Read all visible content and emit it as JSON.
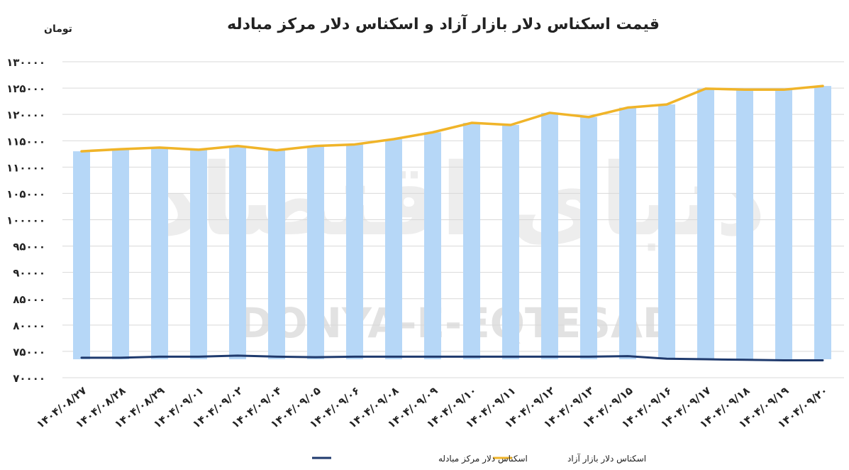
{
  "chart_data": {
    "type": "bar-line",
    "title": "قیمت اسکناس دلار بازار آزاد و اسکناس دلار مرکز مبادله",
    "unit_label": "تومان",
    "watermark": {
      "latin": "DONYA-E-EQTESAD",
      "persian": "دنیای اقتصاد"
    },
    "categories": [
      "۱۴۰۴/۰۸/۲۷",
      "۱۴۰۴/۰۸/۲۸",
      "۱۴۰۴/۰۸/۲۹",
      "۱۴۰۴/۰۹/۰۱",
      "۱۴۰۴/۰۹/۰۲",
      "۱۴۰۴/۰۹/۰۴",
      "۱۴۰۴/۰۹/۰۵",
      "۱۴۰۴/۰۹/۰۶",
      "۱۴۰۴/۰۹/۰۸",
      "۱۴۰۴/۰۹/۰۹",
      "۱۴۰۴/۰۹/۱۰",
      "۱۴۰۴/۰۹/۱۱",
      "۱۴۰۴/۰۹/۱۲",
      "۱۴۰۴/۰۹/۱۳",
      "۱۴۰۴/۰۹/۱۵",
      "۱۴۰۴/۰۹/۱۶",
      "۱۴۰۴/۰۹/۱۷",
      "۱۴۰۴/۰۹/۱۸",
      "۱۴۰۴/۰۹/۱۹",
      "۱۴۰۴/۰۹/۲۰"
    ],
    "series": [
      {
        "name": "اسکناس دلار بازار آزاد",
        "kind": "bar+line",
        "color": "#f0b429",
        "bar_color": "#b6d7f7",
        "values": [
          113000,
          113400,
          113700,
          113300,
          114000,
          113200,
          114000,
          114300,
          115300,
          116600,
          118400,
          118000,
          120300,
          119500,
          121300,
          121900,
          124900,
          124700,
          124700,
          125400
        ]
      },
      {
        "name": "اسکناس دلار مرکز مبادله",
        "kind": "line",
        "color": "#1f3a6d",
        "values": [
          73800,
          73800,
          74000,
          74000,
          74200,
          74000,
          73900,
          74000,
          74000,
          74000,
          74000,
          74000,
          74000,
          74000,
          74100,
          73600,
          73500,
          73400,
          73300,
          73300
        ]
      }
    ],
    "y_axis": {
      "min": 70000,
      "max": 130000,
      "step": 5000,
      "tick_labels": [
        "۷۰۰۰۰",
        "۷۵۰۰۰",
        "۸۰۰۰۰",
        "۸۵۰۰۰",
        "۹۰۰۰۰",
        "۹۵۰۰۰",
        "۱۰۰۰۰۰",
        "۱۰۵۰۰۰",
        "۱۱۰۰۰۰",
        "۱۱۵۰۰۰",
        "۱۲۰۰۰۰",
        "۱۲۵۰۰۰",
        "۱۳۰۰۰۰"
      ]
    },
    "gridlines": true,
    "legend_position": "bottom",
    "colors": {
      "grid": "#d9d9d9",
      "text": "#222222"
    }
  }
}
